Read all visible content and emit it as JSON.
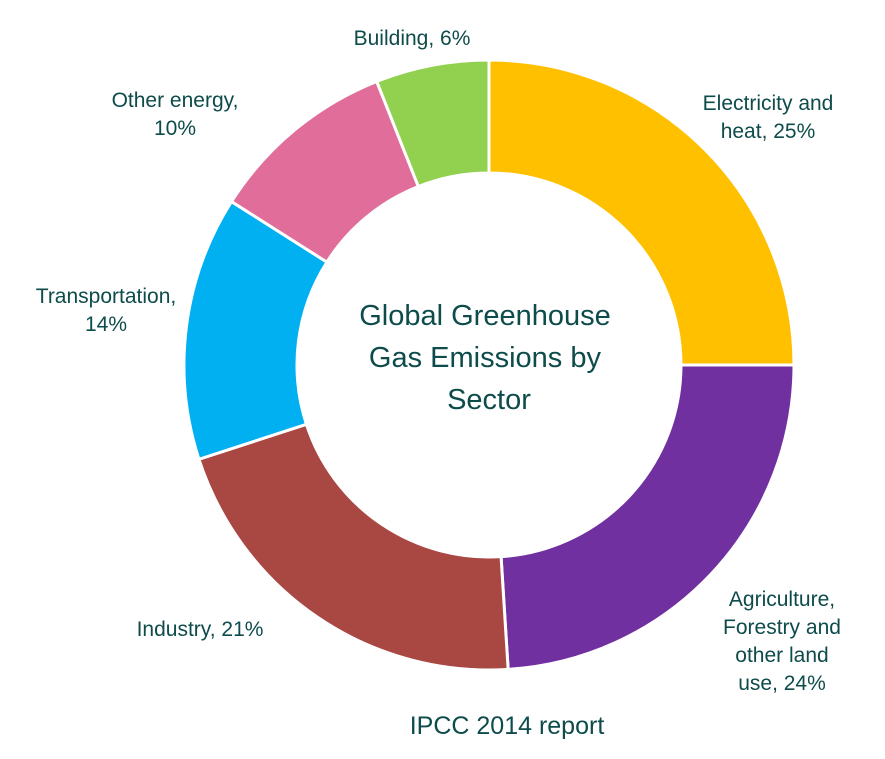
{
  "chart_data": {
    "type": "pie",
    "title_lines": [
      "Global Greenhouse",
      "Gas Emissions by",
      "Sector"
    ],
    "source": "IPCC 2014 report",
    "slices": [
      {
        "label_lines": [
          "Electricity and",
          "heat, 25%"
        ],
        "value": 25,
        "color": "#FFC000"
      },
      {
        "label_lines": [
          "Agriculture,",
          "Forestry and",
          "other land",
          "use, 24%"
        ],
        "value": 24,
        "color": "#7030A0"
      },
      {
        "label_lines": [
          "Industry, 21%"
        ],
        "value": 21,
        "color": "#A94743"
      },
      {
        "label_lines": [
          "Transportation,",
          "14%"
        ],
        "value": 14,
        "color": "#00B0F0"
      },
      {
        "label_lines": [
          "Other energy,",
          "10%"
        ],
        "value": 10,
        "color": "#E06D9A"
      },
      {
        "label_lines": [
          "Building, 6%"
        ],
        "value": 6,
        "color": "#92D050"
      }
    ],
    "donut": true,
    "start": "top",
    "direction": "clockwise",
    "legend": "none"
  }
}
